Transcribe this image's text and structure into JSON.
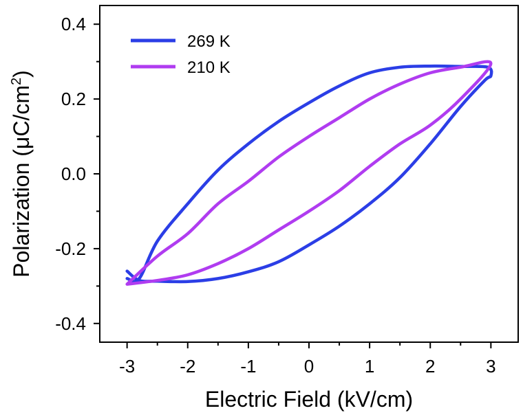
{
  "chart_data": {
    "type": "line",
    "xlabel": "Electric Field (kV/cm)",
    "ylabel_main": "Polarization (μC/cm",
    "ylabel_sup": "2",
    "ylabel_close": ")",
    "xlim": [
      -3.45,
      3.45
    ],
    "ylim": [
      -0.45,
      0.45
    ],
    "xticks": [
      -3,
      -2,
      -1,
      0,
      1,
      2,
      3
    ],
    "xtick_labels": [
      "-3",
      "-2",
      "-1",
      "0",
      "1",
      "2",
      "3"
    ],
    "yticks": [
      -0.4,
      -0.2,
      0.0,
      0.2,
      0.4
    ],
    "ytick_labels": [
      "-0.4",
      "-0.2",
      "0.0",
      "0.2",
      "0.4"
    ],
    "legend_position": "top-left",
    "series": [
      {
        "name": "269 K",
        "color": "#2b3ee6",
        "x": [
          -3.0,
          -2.8,
          -2.5,
          -2.0,
          -1.5,
          -1.0,
          -0.5,
          0.0,
          0.5,
          1.0,
          1.5,
          2.0,
          2.5,
          2.95,
          3.0,
          2.9,
          2.5,
          2.0,
          1.5,
          1.0,
          0.5,
          0.0,
          -0.5,
          -1.0,
          -1.5,
          -2.0,
          -2.5,
          -2.8,
          -3.0
        ],
        "y": [
          -0.28,
          -0.28,
          -0.18,
          -0.08,
          0.01,
          0.08,
          0.14,
          0.19,
          0.235,
          0.27,
          0.285,
          0.288,
          0.287,
          0.285,
          0.262,
          0.25,
          0.18,
          0.08,
          -0.01,
          -0.08,
          -0.14,
          -0.19,
          -0.235,
          -0.262,
          -0.28,
          -0.288,
          -0.287,
          -0.285,
          -0.26
        ]
      },
      {
        "name": "210 K",
        "color": "#b03cf0",
        "x": [
          -3.0,
          -2.5,
          -2.0,
          -1.5,
          -1.0,
          -0.5,
          0.0,
          0.5,
          1.0,
          1.5,
          2.0,
          2.5,
          3.0,
          2.5,
          2.0,
          1.5,
          1.0,
          0.5,
          0.0,
          -0.5,
          -1.0,
          -1.5,
          -2.0,
          -2.5,
          -3.0
        ],
        "y": [
          -0.295,
          -0.22,
          -0.16,
          -0.08,
          -0.02,
          0.045,
          0.1,
          0.15,
          0.2,
          0.24,
          0.27,
          0.285,
          0.295,
          0.2,
          0.13,
          0.08,
          0.02,
          -0.045,
          -0.1,
          -0.15,
          -0.2,
          -0.24,
          -0.27,
          -0.285,
          -0.295
        ]
      }
    ]
  }
}
